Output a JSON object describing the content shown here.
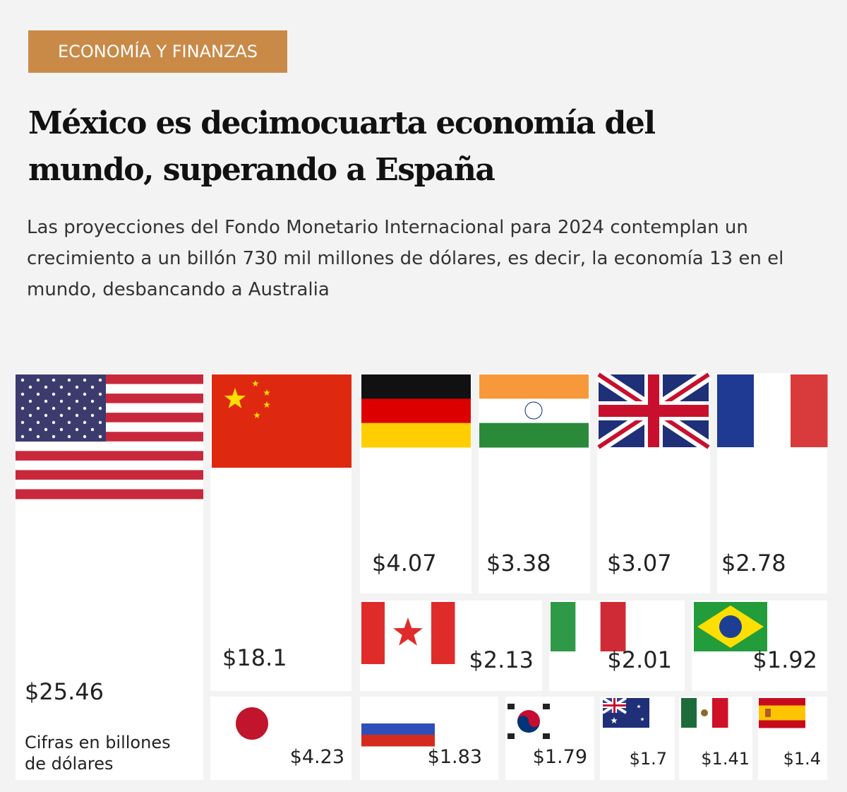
{
  "header": {
    "tag": "ECONOMÍA Y FINANZAS",
    "title": "México es decimocuarta economía del mundo, superando a España",
    "subtitle": "Las proyecciones del Fondo Monetario Internacional para 2024 contemplan un crecimiento a un billón 730 mil millones de dólares, es decir, la economía 13 en el mundo, desbancando a Australia"
  },
  "chart_data": {
    "type": "treemap",
    "values": [
      25.46,
      18.1,
      4.07,
      3.38,
      3.07,
      2.78,
      2.13,
      2.01,
      1.92,
      4.23,
      1.83,
      1.79,
      1.7,
      1.41,
      1.4
    ],
    "value_labels": [
      "$25.46",
      "$18.1",
      "$4.07",
      "$3.38",
      "$3.07",
      "$2.78",
      "$2.13",
      "$2.01",
      "$1.92",
      "$4.23",
      "$1.83",
      "$1.79",
      "$1.7",
      "$1.41",
      "$1.4"
    ],
    "note": "Cifras en billones de dólares"
  }
}
